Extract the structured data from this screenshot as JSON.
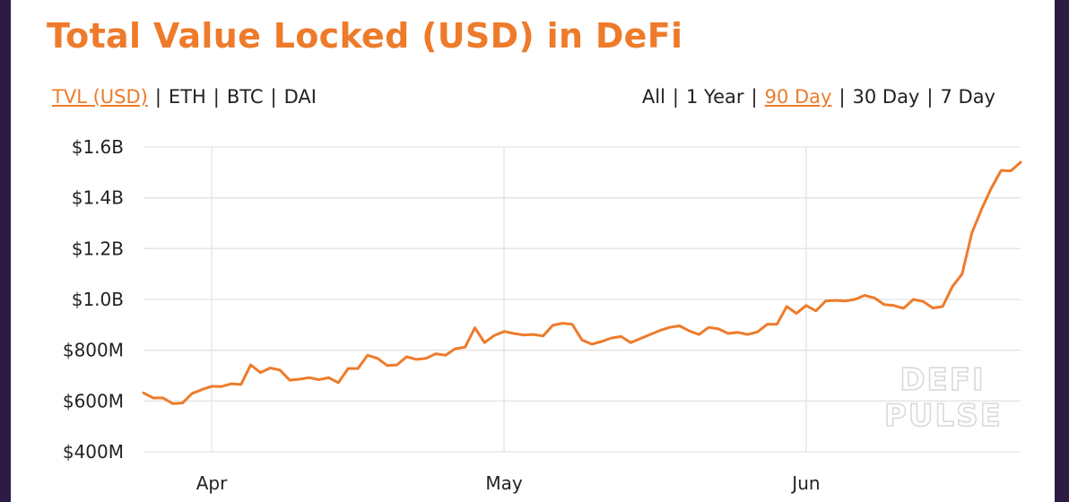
{
  "header": {
    "title": "Total Value Locked (USD) in DeFi"
  },
  "metric_toggle": {
    "options": [
      "TVL (USD)",
      "ETH",
      "BTC",
      "DAI"
    ],
    "active": "TVL (USD)"
  },
  "range_toggle": {
    "options": [
      "All",
      "1 Year",
      "90 Day",
      "30 Day",
      "7 Day"
    ],
    "active": "90 Day"
  },
  "watermark": {
    "line1": "DEFI",
    "line2": "PULSE"
  },
  "colors": {
    "accent": "#ee7b2b",
    "grid": "#e3e3e3",
    "text": "#222222"
  },
  "chart_data": {
    "type": "line",
    "title": "Total Value Locked (USD) in DeFi",
    "xlabel": "",
    "ylabel": "",
    "grid": true,
    "ylim": [
      400000000,
      1600000000
    ],
    "yticks": [
      {
        "value": 1600000000,
        "label": "$1.6B"
      },
      {
        "value": 1400000000,
        "label": "$1.4B"
      },
      {
        "value": 1200000000,
        "label": "$1.2B"
      },
      {
        "value": 1000000000,
        "label": "$1.0B"
      },
      {
        "value": 800000000,
        "label": "$800M"
      },
      {
        "value": 600000000,
        "label": "$600M"
      },
      {
        "value": 400000000,
        "label": "$400M"
      }
    ],
    "xlim": [
      "2020-03-25",
      "2020-06-23"
    ],
    "xticks": [
      {
        "date": "2020-04-01",
        "label": "Apr"
      },
      {
        "date": "2020-05-01",
        "label": "May"
      },
      {
        "date": "2020-06-01",
        "label": "Jun"
      }
    ],
    "series": [
      {
        "color": "#ee7b2b",
        "points": [
          [
            "2020-03-25",
            632000000
          ],
          [
            "2020-03-26",
            612000000
          ],
          [
            "2020-03-27",
            612000000
          ],
          [
            "2020-03-28",
            590000000
          ],
          [
            "2020-03-29",
            592000000
          ],
          [
            "2020-03-30",
            630000000
          ],
          [
            "2020-03-31",
            645000000
          ],
          [
            "2020-04-01",
            658000000
          ],
          [
            "2020-04-02",
            657000000
          ],
          [
            "2020-04-03",
            668000000
          ],
          [
            "2020-04-04",
            665000000
          ],
          [
            "2020-04-05",
            742000000
          ],
          [
            "2020-04-06",
            712000000
          ],
          [
            "2020-04-07",
            730000000
          ],
          [
            "2020-04-08",
            722000000
          ],
          [
            "2020-04-09",
            682000000
          ],
          [
            "2020-04-10",
            686000000
          ],
          [
            "2020-04-11",
            692000000
          ],
          [
            "2020-04-12",
            684000000
          ],
          [
            "2020-04-13",
            692000000
          ],
          [
            "2020-04-14",
            672000000
          ],
          [
            "2020-04-15",
            728000000
          ],
          [
            "2020-04-16",
            728000000
          ],
          [
            "2020-04-17",
            780000000
          ],
          [
            "2020-04-18",
            768000000
          ],
          [
            "2020-04-19",
            740000000
          ],
          [
            "2020-04-20",
            742000000
          ],
          [
            "2020-04-21",
            774000000
          ],
          [
            "2020-04-22",
            764000000
          ],
          [
            "2020-04-23",
            768000000
          ],
          [
            "2020-04-24",
            786000000
          ],
          [
            "2020-04-25",
            780000000
          ],
          [
            "2020-04-26",
            806000000
          ],
          [
            "2020-04-27",
            812000000
          ],
          [
            "2020-04-28",
            888000000
          ],
          [
            "2020-04-29",
            830000000
          ],
          [
            "2020-04-30",
            858000000
          ],
          [
            "2020-05-01",
            874000000
          ],
          [
            "2020-05-02",
            866000000
          ],
          [
            "2020-05-03",
            860000000
          ],
          [
            "2020-05-04",
            862000000
          ],
          [
            "2020-05-05",
            856000000
          ],
          [
            "2020-05-06",
            898000000
          ],
          [
            "2020-05-07",
            906000000
          ],
          [
            "2020-05-08",
            902000000
          ],
          [
            "2020-05-09",
            840000000
          ],
          [
            "2020-05-10",
            824000000
          ],
          [
            "2020-05-11",
            834000000
          ],
          [
            "2020-05-12",
            848000000
          ],
          [
            "2020-05-13",
            854000000
          ],
          [
            "2020-05-14",
            830000000
          ],
          [
            "2020-05-15",
            846000000
          ],
          [
            "2020-05-16",
            862000000
          ],
          [
            "2020-05-17",
            878000000
          ],
          [
            "2020-05-18",
            890000000
          ],
          [
            "2020-05-19",
            896000000
          ],
          [
            "2020-05-20",
            876000000
          ],
          [
            "2020-05-21",
            862000000
          ],
          [
            "2020-05-22",
            890000000
          ],
          [
            "2020-05-23",
            884000000
          ],
          [
            "2020-05-24",
            866000000
          ],
          [
            "2020-05-25",
            870000000
          ],
          [
            "2020-05-26",
            862000000
          ],
          [
            "2020-05-27",
            872000000
          ],
          [
            "2020-05-28",
            902000000
          ],
          [
            "2020-05-29",
            902000000
          ],
          [
            "2020-05-30",
            972000000
          ],
          [
            "2020-05-31",
            945000000
          ],
          [
            "2020-06-01",
            976000000
          ],
          [
            "2020-06-02",
            955000000
          ],
          [
            "2020-06-03",
            994000000
          ],
          [
            "2020-06-04",
            996000000
          ],
          [
            "2020-06-05",
            994000000
          ],
          [
            "2020-06-06",
            1000000000
          ],
          [
            "2020-06-07",
            1016000000
          ],
          [
            "2020-06-08",
            1006000000
          ],
          [
            "2020-06-09",
            980000000
          ],
          [
            "2020-06-10",
            976000000
          ],
          [
            "2020-06-11",
            965000000
          ],
          [
            "2020-06-12",
            1000000000
          ],
          [
            "2020-06-13",
            992000000
          ],
          [
            "2020-06-14",
            966000000
          ],
          [
            "2020-06-15",
            972000000
          ],
          [
            "2020-06-16",
            1050000000
          ],
          [
            "2020-06-17",
            1100000000
          ],
          [
            "2020-06-18",
            1262000000
          ],
          [
            "2020-06-19",
            1355000000
          ],
          [
            "2020-06-20",
            1438000000
          ],
          [
            "2020-06-21",
            1508000000
          ],
          [
            "2020-06-22",
            1506000000
          ],
          [
            "2020-06-23",
            1540000000
          ]
        ]
      }
    ]
  }
}
